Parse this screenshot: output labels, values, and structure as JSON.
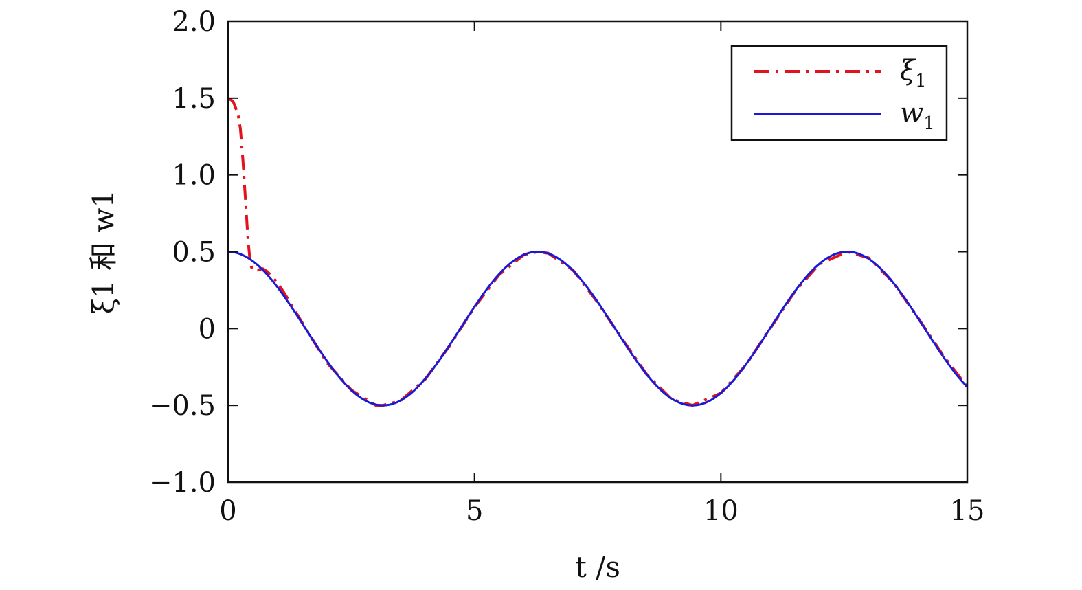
{
  "chart_data": {
    "type": "line",
    "title": "",
    "xlabel": "t /s",
    "ylabel": "ξ1 和 w1",
    "xlim": [
      0,
      15
    ],
    "ylim": [
      -1.0,
      2.0
    ],
    "x_ticks": [
      0,
      5,
      10,
      15
    ],
    "x_tick_labels": [
      "0",
      "5",
      "10",
      "15"
    ],
    "y_ticks": [
      -1.0,
      -0.5,
      0,
      0.5,
      1.0,
      1.5,
      2.0
    ],
    "y_tick_labels": [
      "−1.0",
      "−0.5",
      "0",
      "0.5",
      "1.0",
      "1.5",
      "2.0"
    ],
    "grid": false,
    "legend_position": "top-right",
    "series": [
      {
        "name": "ξ1",
        "color": "#e0141e",
        "style": "dash-dot",
        "points": [
          [
            0.0,
            1.5
          ],
          [
            0.1,
            1.48
          ],
          [
            0.2,
            1.4
          ],
          [
            0.25,
            1.3
          ],
          [
            0.3,
            1.1
          ],
          [
            0.35,
            0.85
          ],
          [
            0.4,
            0.6
          ],
          [
            0.45,
            0.42
          ],
          [
            0.5,
            0.38
          ],
          [
            0.6,
            0.38
          ],
          [
            0.7,
            0.39
          ],
          [
            0.8,
            0.37
          ],
          [
            1.0,
            0.3
          ],
          [
            1.2,
            0.2
          ],
          [
            1.5,
            0.04
          ],
          [
            2.0,
            -0.22
          ],
          [
            2.5,
            -0.4
          ],
          [
            3.0,
            -0.5
          ],
          [
            3.1416,
            -0.5
          ],
          [
            3.5,
            -0.47
          ],
          [
            4.0,
            -0.33
          ],
          [
            4.5,
            -0.11
          ],
          [
            5.0,
            0.14
          ],
          [
            5.5,
            0.35
          ],
          [
            6.0,
            0.48
          ],
          [
            6.2832,
            0.5
          ],
          [
            6.5,
            0.49
          ],
          [
            7.0,
            0.38
          ],
          [
            7.5,
            0.17
          ],
          [
            8.0,
            -0.07
          ],
          [
            8.5,
            -0.3
          ],
          [
            9.0,
            -0.46
          ],
          [
            9.4248,
            -0.5
          ],
          [
            10.0,
            -0.42
          ],
          [
            10.5,
            -0.24
          ],
          [
            11.0,
            0.0
          ],
          [
            11.5,
            0.24
          ],
          [
            12.0,
            0.42
          ],
          [
            12.5664,
            0.5
          ],
          [
            13.0,
            0.46
          ],
          [
            13.5,
            0.3
          ],
          [
            14.0,
            0.07
          ],
          [
            14.5,
            -0.17
          ],
          [
            15.0,
            -0.38
          ]
        ]
      },
      {
        "name": "w1",
        "color": "#1a1ad6",
        "style": "solid",
        "function": "0.5*cos(t)"
      }
    ]
  },
  "legend": {
    "items": [
      {
        "symbol": "ξ",
        "sub": "1"
      },
      {
        "symbol": "w",
        "sub": "1"
      }
    ]
  }
}
